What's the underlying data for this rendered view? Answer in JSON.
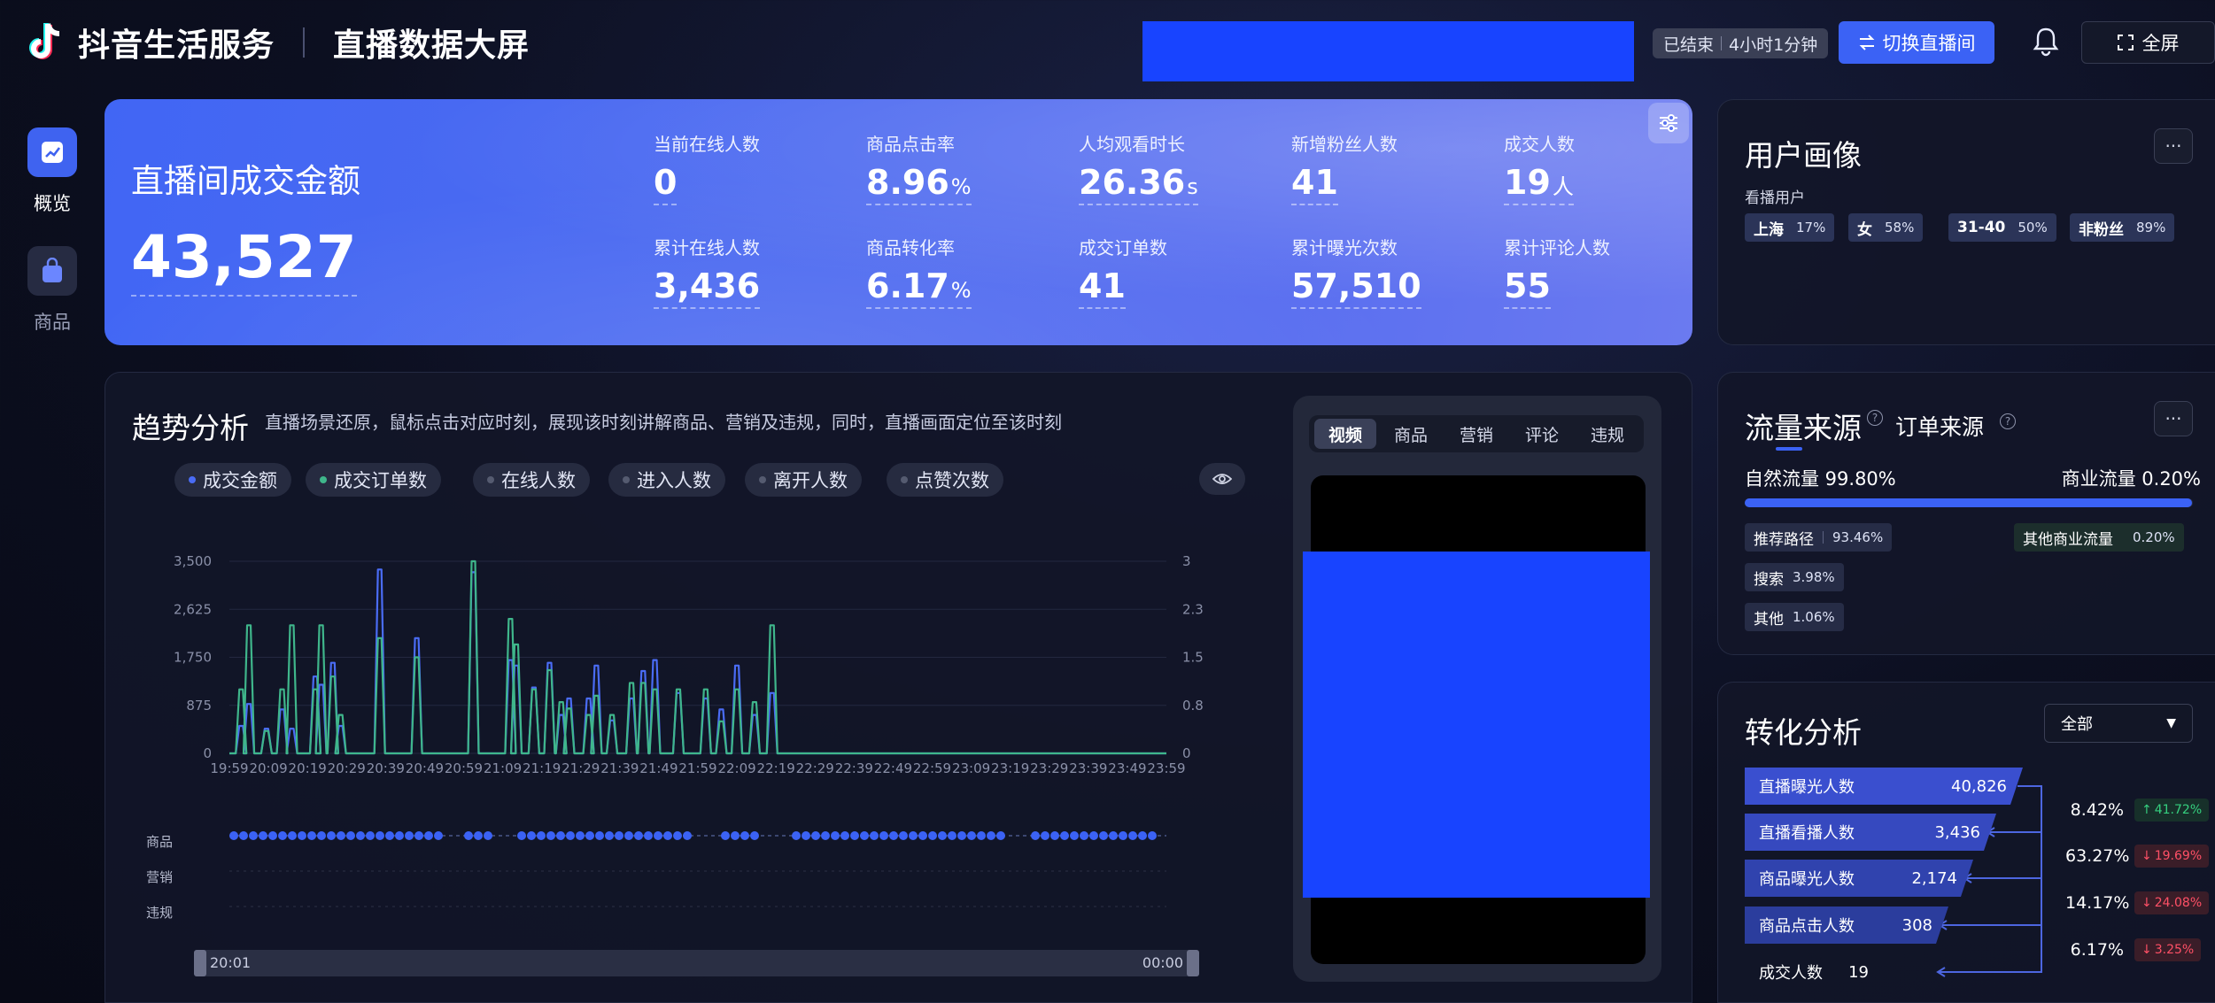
{
  "header": {
    "brand": "抖音生活服务",
    "title": "直播数据大屏",
    "status": "已结束",
    "duration": "4小时1分钟",
    "switch_label": "切换直播间",
    "fullscreen_label": "全屏"
  },
  "sidebar": {
    "items": [
      {
        "label": "概览",
        "icon": "chart-icon",
        "active": true
      },
      {
        "label": "商品",
        "icon": "bag-icon",
        "active": false
      }
    ]
  },
  "kpi": {
    "main_label": "直播间成交金额",
    "main_value": "43,527",
    "items": [
      {
        "label": "当前在线人数",
        "value": "0",
        "unit": ""
      },
      {
        "label": "商品点击率",
        "value": "8.96",
        "unit": "%"
      },
      {
        "label": "人均观看时长",
        "value": "26.36",
        "unit": "s"
      },
      {
        "label": "新增粉丝人数",
        "value": "41",
        "unit": ""
      },
      {
        "label": "成交人数",
        "value": "19",
        "unit": "人"
      },
      {
        "label": "累计在线人数",
        "value": "3,436",
        "unit": ""
      },
      {
        "label": "商品转化率",
        "value": "6.17",
        "unit": "%"
      },
      {
        "label": "成交订单数",
        "value": "41",
        "unit": ""
      },
      {
        "label": "累计曝光次数",
        "value": "57,510",
        "unit": ""
      },
      {
        "label": "累计评论人数",
        "value": "55",
        "unit": ""
      }
    ]
  },
  "trend": {
    "title": "趋势分析",
    "description": "直播场景还原，鼠标点击对应时刻，展现该时刻讲解商品、营销及违规，同时，直播画面定位至该时刻",
    "legend": [
      {
        "label": "成交金额",
        "color": "#4a6cf5"
      },
      {
        "label": "成交订单数",
        "color": "#3fb68b"
      },
      {
        "label": "在线人数",
        "color": "#555b70"
      },
      {
        "label": "进入人数",
        "color": "#555b70"
      },
      {
        "label": "离开人数",
        "color": "#555b70"
      },
      {
        "label": "点赞次数",
        "color": "#555b70"
      }
    ],
    "row_labels": [
      "商品",
      "营销",
      "违规"
    ],
    "slider_start": "20:01",
    "slider_end": "00:00"
  },
  "chart_data": {
    "type": "line",
    "x": [
      "19:59",
      "20:09",
      "20:19",
      "20:29",
      "20:39",
      "20:49",
      "20:59",
      "21:09",
      "21:19",
      "21:29",
      "21:39",
      "21:49",
      "21:59",
      "22:09",
      "22:19",
      "22:29",
      "22:39",
      "22:49",
      "22:59",
      "23:09",
      "23:19",
      "23:29",
      "23:39",
      "23:49",
      "23:59"
    ],
    "y_left_ticks": [
      "0",
      "875",
      "1,750",
      "2,625",
      "3,500"
    ],
    "y_left_range": [
      0,
      3500
    ],
    "y_right_ticks": [
      "0",
      "0.8",
      "1.5",
      "2.3",
      "3"
    ],
    "y_right_range": [
      0,
      3
    ],
    "series": [
      {
        "name": "成交金额",
        "color": "#4a6cf5",
        "peaks": [
          [
            20.3,
            500
          ],
          [
            20.5,
            900
          ],
          [
            20.95,
            450
          ],
          [
            21.35,
            800
          ],
          [
            21.6,
            450
          ],
          [
            22.2,
            1400
          ],
          [
            22.35,
            1250
          ],
          [
            22.65,
            1650
          ],
          [
            22.85,
            500
          ],
          [
            23.85,
            3350
          ],
          [
            24.8,
            2100
          ],
          [
            26.25,
            3300
          ],
          [
            27.2,
            1700
          ],
          [
            27.35,
            1600
          ],
          [
            27.8,
            1200
          ],
          [
            28.2,
            1650
          ],
          [
            28.5,
            700
          ],
          [
            28.7,
            1000
          ],
          [
            29.2,
            1000
          ],
          [
            29.4,
            1600
          ],
          [
            29.8,
            600
          ],
          [
            30.3,
            1000
          ],
          [
            30.6,
            1500
          ],
          [
            30.9,
            1700
          ],
          [
            31.5,
            1100
          ],
          [
            32.2,
            1000
          ],
          [
            32.6,
            800
          ],
          [
            33.0,
            1600
          ],
          [
            33.45,
            700
          ],
          [
            33.9,
            1100
          ]
        ]
      },
      {
        "name": "成交订单数",
        "color": "#3fb68b",
        "peaks": [
          [
            20.3,
            1
          ],
          [
            20.5,
            2
          ],
          [
            20.95,
            0.35
          ],
          [
            21.35,
            1
          ],
          [
            21.6,
            2
          ],
          [
            22.2,
            1
          ],
          [
            22.35,
            2
          ],
          [
            22.65,
            1.2
          ],
          [
            22.85,
            0.6
          ],
          [
            23.85,
            1.8
          ],
          [
            24.8,
            1.5
          ],
          [
            26.25,
            3
          ],
          [
            27.2,
            2.1
          ],
          [
            27.35,
            1.7
          ],
          [
            27.8,
            1
          ],
          [
            28.2,
            1.3
          ],
          [
            28.5,
            0.8
          ],
          [
            28.7,
            0.7
          ],
          [
            29.2,
            0.6
          ],
          [
            29.4,
            0.9
          ],
          [
            29.8,
            0.6
          ],
          [
            30.3,
            1.1
          ],
          [
            30.6,
            1.1
          ],
          [
            30.9,
            1
          ],
          [
            31.5,
            1
          ],
          [
            32.2,
            1
          ],
          [
            32.6,
            0.5
          ],
          [
            33.0,
            1
          ],
          [
            33.45,
            0.8
          ],
          [
            33.9,
            2
          ]
        ]
      }
    ]
  },
  "video": {
    "tabs": [
      "视频",
      "商品",
      "营销",
      "评论",
      "违规"
    ],
    "active_tab": 0
  },
  "user_profile": {
    "title": "用户画像",
    "subtitle": "看播用户",
    "tags": [
      {
        "label": "上海",
        "pct": "17%"
      },
      {
        "label": "女",
        "pct": "58%"
      },
      {
        "label": "31-40",
        "pct": "50%"
      },
      {
        "label": "非粉丝",
        "pct": "89%"
      }
    ]
  },
  "traffic": {
    "tab_active": "流量来源",
    "tab_other": "订单来源",
    "natural_label": "自然流量 99.80%",
    "commercial_label": "商业流量 0.20%",
    "natural_fraction": 0.998,
    "sources": [
      {
        "label": "推荐路径",
        "pct": "93.46%"
      },
      {
        "label": "搜索",
        "pct": "3.98%"
      },
      {
        "label": "其他",
        "pct": "1.06%"
      }
    ],
    "commercial_sources": [
      {
        "label": "其他商业流量",
        "pct": "0.20%"
      }
    ]
  },
  "conversion": {
    "title": "转化分析",
    "filter": "全部",
    "steps": [
      {
        "label": "直播曝光人数",
        "value": "40,826"
      },
      {
        "label": "直播看播人数",
        "value": "3,436"
      },
      {
        "label": "商品曝光人数",
        "value": "2,174"
      },
      {
        "label": "商品点击人数",
        "value": "308"
      },
      {
        "label": "成交人数",
        "value": "19"
      }
    ],
    "rates": [
      {
        "rate": "8.42%",
        "change": "41.72%",
        "dir": "up"
      },
      {
        "rate": "63.27%",
        "change": "19.69%",
        "dir": "down"
      },
      {
        "rate": "14.17%",
        "change": "24.08%",
        "dir": "down"
      },
      {
        "rate": "6.17%",
        "change": "3.25%",
        "dir": "down"
      }
    ]
  }
}
